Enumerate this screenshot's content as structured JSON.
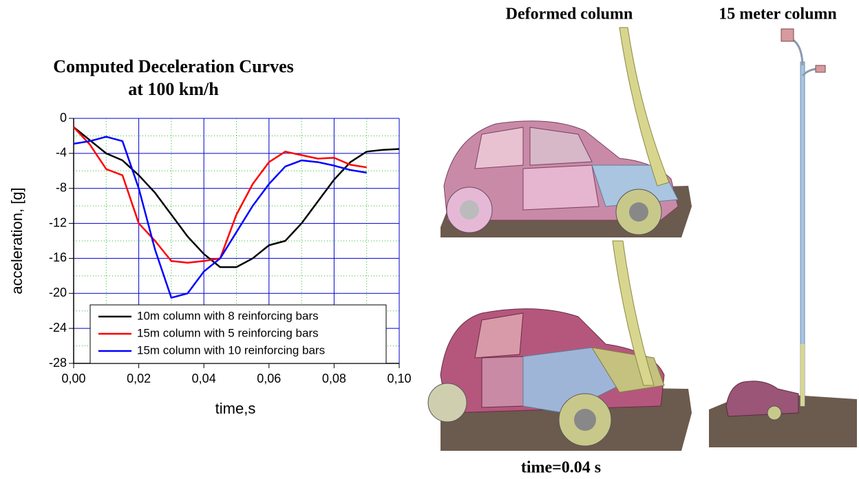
{
  "chart_data": {
    "type": "line",
    "title": "Computed Deceleration Curves",
    "subtitle": "at 100 km/h",
    "x_label": "time,s",
    "y_label": "acceleration, [g]",
    "x": [
      0,
      0.005,
      0.01,
      0.015,
      0.02,
      0.025,
      0.03,
      0.035,
      0.04,
      0.045,
      0.05,
      0.055,
      0.06,
      0.065,
      0.07,
      0.075,
      0.08,
      0.085,
      0.09,
      0.095,
      0.1
    ],
    "series": [
      {
        "name": "10m column with 8 reinforcing bars",
        "color": "#000000",
        "values": [
          -1,
          -2.5,
          -4,
          -4.8,
          -6.5,
          -8.5,
          -11,
          -13.5,
          -15.5,
          -17,
          -17,
          -16,
          -14.5,
          -14,
          -12,
          -9.5,
          -7,
          -5,
          -3.8,
          -3.6,
          -3.5
        ]
      },
      {
        "name": "15m column with 5 reinforcing bars",
        "color": "#ff0000",
        "values": [
          -1,
          -3,
          -5.8,
          -6.5,
          -12,
          -14,
          -16.3,
          -16.5,
          -16.3,
          -16,
          -11,
          -7.5,
          -5,
          -3.8,
          -4.2,
          -4.6,
          -4.5,
          -5.3,
          -5.6,
          null,
          null
        ]
      },
      {
        "name": "15m column with 10 reinforcing bars",
        "color": "#0000ff",
        "values": [
          -2.9,
          -2.6,
          -2.1,
          -2.6,
          -8,
          -15,
          -20.5,
          -20,
          -17.5,
          -16,
          -13,
          -10,
          -7.5,
          -5.5,
          -4.8,
          -5,
          -5.4,
          -5.9,
          -6.2,
          null,
          null
        ]
      }
    ],
    "xlim": [
      0,
      0.1
    ],
    "ylim": [
      -28,
      0
    ],
    "xticks": [
      {
        "value": 0,
        "label": "0,00"
      },
      {
        "value": 0.02,
        "label": "0,02"
      },
      {
        "value": 0.04,
        "label": "0,04"
      },
      {
        "value": 0.06,
        "label": "0,06"
      },
      {
        "value": 0.08,
        "label": "0,08"
      },
      {
        "value": 0.1,
        "label": "0,10"
      }
    ],
    "yticks": [
      0,
      -4,
      -8,
      -12,
      -16,
      -20,
      -24,
      -28
    ],
    "grid": true,
    "minor_grid": true,
    "legend": "lower-left"
  },
  "panels": {
    "deformed_title": "Deformed column",
    "column_title": "15 meter column",
    "time_label": "time=0.04 s"
  }
}
